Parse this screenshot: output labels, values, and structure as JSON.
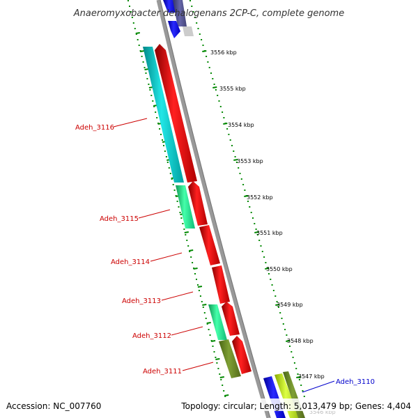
{
  "title": "Anaeromyxobacter dehalogenans 2CP-C, complete genome",
  "footer": {
    "accession": "Accession: NC_007760",
    "summary": "Topology: circular; Length: 5,013,479 bp; Genes: 4,404"
  },
  "scale": {
    "unit": "kbp",
    "labels": [
      "3556 kbp",
      "3555 kbp",
      "3554 kbp",
      "3553 kbp",
      "3552 kbp",
      "3551 kbp",
      "3550 kbp",
      "3549 kbp",
      "3548 kbp",
      "3547 kbp",
      "3546 kbp"
    ]
  },
  "genes": [
    {
      "label": "Adeh_3116",
      "label_color": "#cc0000"
    },
    {
      "label": "Adeh_3115",
      "label_color": "#cc0000"
    },
    {
      "label": "Adeh_3114",
      "label_color": "#cc0000"
    },
    {
      "label": "Adeh_3113",
      "label_color": "#cc0000"
    },
    {
      "label": "Adeh_3112",
      "label_color": "#cc0000"
    },
    {
      "label": "Adeh_3111",
      "label_color": "#cc0000"
    },
    {
      "label": "Adeh_3110",
      "label_color": "#0000cc"
    }
  ],
  "colors": {
    "cds_forward": "#ff0000",
    "cog_cyan": "#00cccc",
    "cog_spring": "#22ee99",
    "cog_olive": "#6b8e23",
    "cog_blue": "#0000ff",
    "cog_yellowgreen": "#bbee22",
    "backbone": "#999999",
    "tick_green": "#008800"
  }
}
